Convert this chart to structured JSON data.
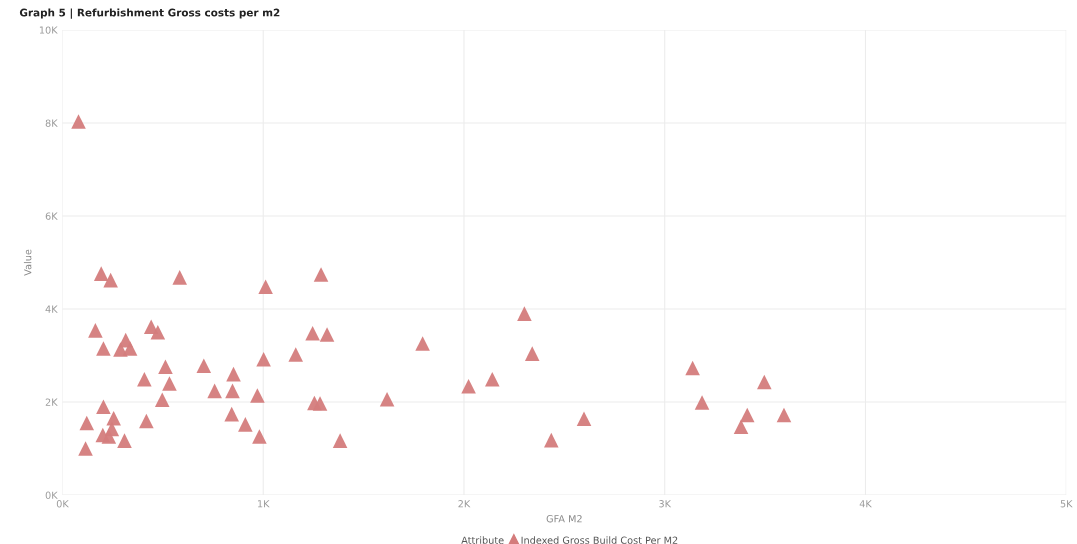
{
  "chart_data": {
    "type": "scatter",
    "title": "Graph 5 | Refurbishment Gross costs per m2",
    "xlabel": "GFA M2",
    "ylabel": "Value",
    "legend_title": "Attribute",
    "xlim": [
      0,
      5000
    ],
    "ylim": [
      0,
      10000
    ],
    "xticks": [
      {
        "value": 0,
        "label": "0K"
      },
      {
        "value": 1000,
        "label": "1K"
      },
      {
        "value": 2000,
        "label": "2K"
      },
      {
        "value": 3000,
        "label": "3K"
      },
      {
        "value": 4000,
        "label": "4K"
      },
      {
        "value": 5000,
        "label": "5K"
      }
    ],
    "yticks": [
      {
        "value": 0,
        "label": "0K"
      },
      {
        "value": 2000,
        "label": "2K"
      },
      {
        "value": 4000,
        "label": "4K"
      },
      {
        "value": 6000,
        "label": "6K"
      },
      {
        "value": 8000,
        "label": "8K"
      },
      {
        "value": 10000,
        "label": "10K"
      }
    ],
    "grid": true,
    "legend": "bottom",
    "marker": "triangle",
    "series": [
      {
        "name": "Indexed Gross Build Cost Per M2",
        "color": "#d47c7c",
        "x": [
          80,
          193,
          240,
          584,
          1012,
          1288,
          164,
          442,
          475,
          204,
          315,
          289,
          337,
          513,
          704,
          852,
          1002,
          1162,
          1246,
          1318,
          408,
          533,
          497,
          758,
          847,
          971,
          204,
          1255,
          1283,
          121,
          255,
          418,
          843,
          911,
          246,
          201,
          231,
          309,
          981,
          115,
          1383,
          2301,
          1794,
          2340,
          2141,
          2023,
          1617,
          2598,
          2435,
          3139,
          3496,
          3186,
          3411,
          3594,
          3380
        ],
        "values": [
          8030,
          4760,
          4620,
          4680,
          4480,
          4740,
          3540,
          3620,
          3500,
          3150,
          3330,
          3130,
          3150,
          2760,
          2780,
          2600,
          2920,
          3020,
          3480,
          3450,
          2490,
          2400,
          2050,
          2240,
          2240,
          2140,
          1900,
          1980,
          1970,
          1550,
          1650,
          1590,
          1740,
          1520,
          1420,
          1290,
          1260,
          1170,
          1260,
          1000,
          1170,
          3900,
          3260,
          3040,
          2490,
          2340,
          2060,
          1640,
          1180,
          2730,
          2430,
          1990,
          1720,
          1720,
          1470
        ]
      }
    ]
  }
}
